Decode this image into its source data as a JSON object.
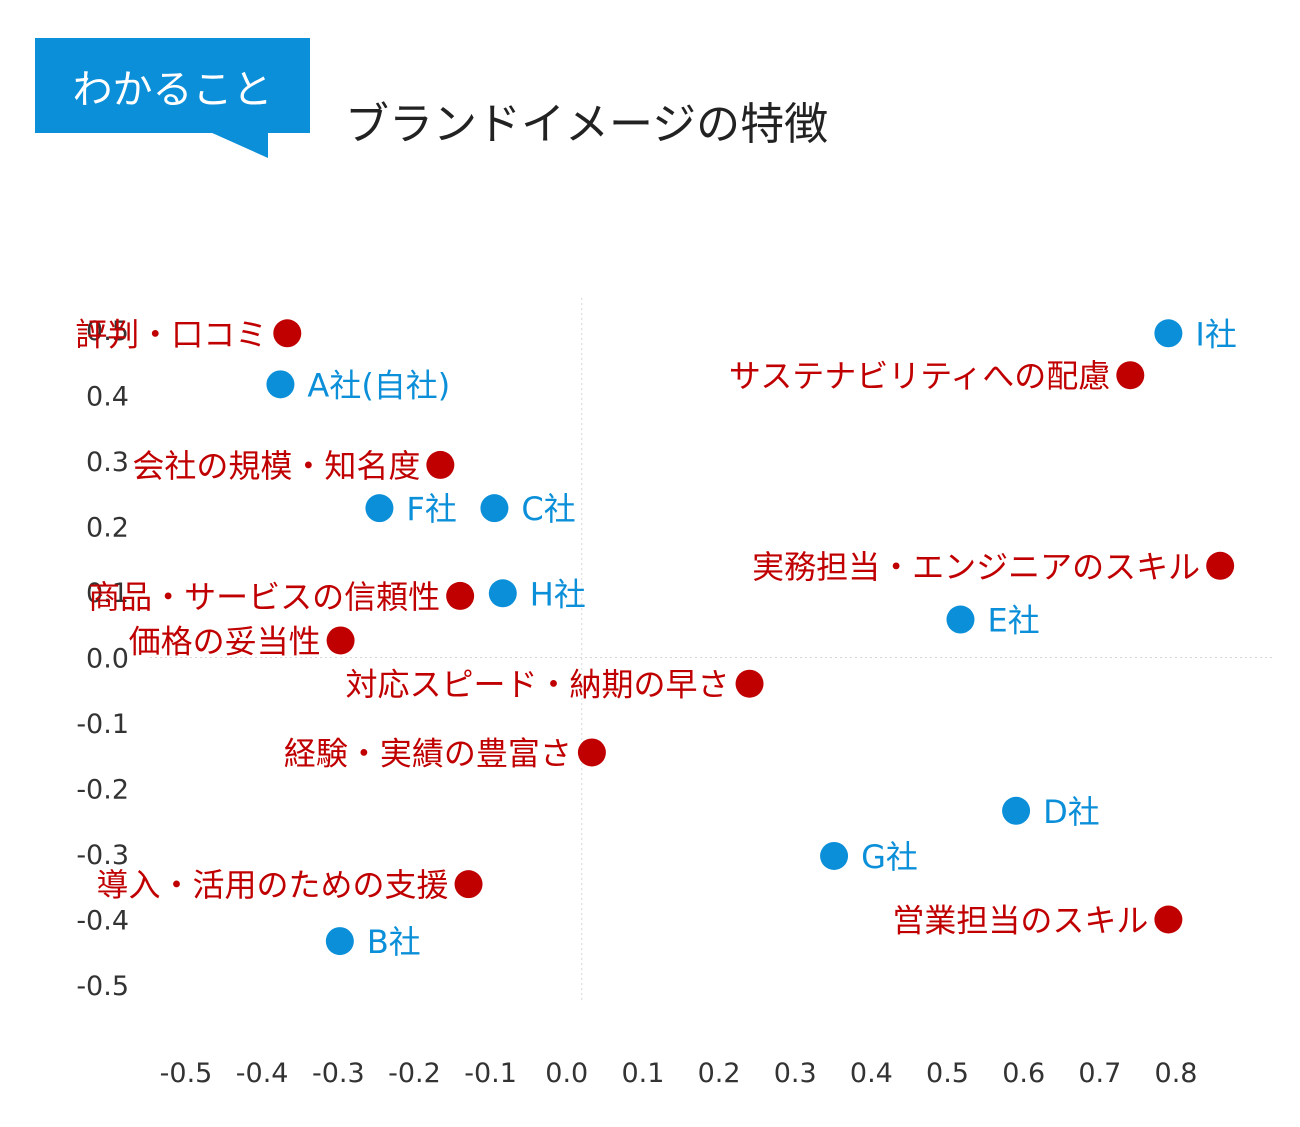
{
  "header": {
    "badge_label": "わかること",
    "title": "ブランドイメージの特徴"
  },
  "colors": {
    "accent": "#0b8fd9",
    "company": "#0b8fd9",
    "attribute": "#c00000"
  },
  "chart_data": {
    "type": "scatter",
    "title": "",
    "xlabel": "",
    "ylabel": "",
    "xlim": [
      -0.5,
      0.8
    ],
    "ylim": [
      -0.5,
      0.5
    ],
    "x_ticks": [
      "-0.5",
      "-0.4",
      "-0.3",
      "-0.2",
      "-0.1",
      "0.0",
      "0.1",
      "0.2",
      "0.3",
      "0.4",
      "0.5",
      "0.6",
      "0.7",
      "0.8"
    ],
    "y_ticks": [
      "0.5",
      "0.4",
      "0.3",
      "0.2",
      "0.1",
      "0.0",
      "-0.1",
      "-0.2",
      "-0.3",
      "-0.4",
      "-0.5"
    ],
    "grid": false,
    "zero_lines": true,
    "series": [
      {
        "color": "#0b8fd9",
        "label_side": "right",
        "points": [
          {
            "label": "A社(自社)",
            "x": -0.376,
            "y": 0.417
          },
          {
            "label": "F社",
            "x": -0.246,
            "y": 0.228
          },
          {
            "label": "C社",
            "x": -0.095,
            "y": 0.228
          },
          {
            "label": "H社",
            "x": -0.084,
            "y": 0.098
          },
          {
            "label": "I社",
            "x": 0.79,
            "y": 0.495
          },
          {
            "label": "E社",
            "x": 0.517,
            "y": 0.058
          },
          {
            "label": "D社",
            "x": 0.59,
            "y": -0.234
          },
          {
            "label": "G社",
            "x": 0.351,
            "y": -0.303
          },
          {
            "label": "B社",
            "x": -0.298,
            "y": -0.433
          }
        ]
      },
      {
        "color": "#c00000",
        "label_side": "left",
        "points": [
          {
            "label": "評判・口コミ",
            "x": -0.367,
            "y": 0.495
          },
          {
            "label": "会社の規模・知名度",
            "x": -0.166,
            "y": 0.294
          },
          {
            "label": "サステナビリティへの配慮",
            "x": 0.74,
            "y": 0.431
          },
          {
            "label": "実務担当・エンジニアのスキル",
            "x": 0.858,
            "y": 0.14
          },
          {
            "label": "商品・サービスの信頼性",
            "x": -0.14,
            "y": 0.094
          },
          {
            "label": "価格の妥当性",
            "x": -0.297,
            "y": 0.026
          },
          {
            "label": "対応スピード・納期の早さ",
            "x": 0.24,
            "y": -0.04
          },
          {
            "label": "経験・実績の豊富さ",
            "x": 0.033,
            "y": -0.145
          },
          {
            "label": "導入・活用のための支援",
            "x": -0.129,
            "y": -0.346
          },
          {
            "label": "営業担当のスキル",
            "x": 0.79,
            "y": -0.4
          }
        ]
      }
    ]
  }
}
